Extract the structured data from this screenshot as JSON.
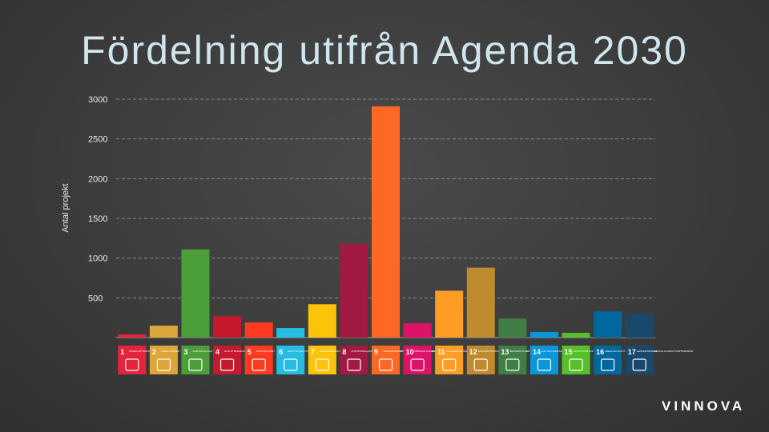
{
  "slide": {
    "title": "Fördelning utifrån Agenda 2030",
    "logo": "VINNOVA"
  },
  "chart_data": {
    "type": "bar",
    "title": "Fördelning utifrån Agenda 2030",
    "xlabel": "",
    "ylabel": "Antal projekt",
    "ylim": [
      0,
      3000
    ],
    "yticks": [
      500,
      1000,
      1500,
      2000,
      2500,
      3000
    ],
    "grid": true,
    "categories": [
      "1",
      "2",
      "3",
      "4",
      "5",
      "6",
      "7",
      "8",
      "9",
      "10",
      "11",
      "12",
      "13",
      "14",
      "15",
      "16",
      "17"
    ],
    "category_labels": [
      "INGEN FATTIGDOM",
      "INGEN HUNGER",
      "GOD HÄLSA OCH VÄLBEFINNANDE",
      "GOD UTBILDNING FÖR ALLA",
      "JÄMSTÄLLDHET",
      "RENT VATTEN OCH SANITET FÖR ALLA",
      "HÅLLBAR ENERGI FÖR ALLA",
      "ANSTÄNDIGA ARBETSVILLKOR OCH EKONOMISK TILLVÄXT",
      "HÅLLBAR INDUSTRI, INNOVATIONER OCH INFRASTRUKTUR",
      "MINSKAD OJÄMLIKHET",
      "HÅLLBARA STÄDER OCH SAMHÄLLEN",
      "HÅLLBAR KONSUMTION OCH PRODUKTION",
      "BEKÄMPA KLIMATFÖRÄNDRINGARNA",
      "HAV OCH MARINA RESURSER",
      "EKOSYSTEM OCH BIOLOGISK MÅNGFALD",
      "FREDLIGA OCH INKLUDERANDE SAMHÄLLEN",
      "GENOMFÖRANDE OCH GLOBALT PARTNERSKAP"
    ],
    "values": [
      40,
      150,
      1110,
      270,
      190,
      120,
      420,
      1180,
      2910,
      180,
      590,
      880,
      240,
      70,
      60,
      330,
      300
    ],
    "colors": [
      "#e5243b",
      "#dda63a",
      "#4c9f38",
      "#c5192d",
      "#ff3a21",
      "#26bde2",
      "#fcc30b",
      "#a21942",
      "#fd6925",
      "#dd1367",
      "#fd9d24",
      "#bf8b2e",
      "#3f7e44",
      "#0a97d9",
      "#56c02b",
      "#00689d",
      "#19486a"
    ]
  }
}
